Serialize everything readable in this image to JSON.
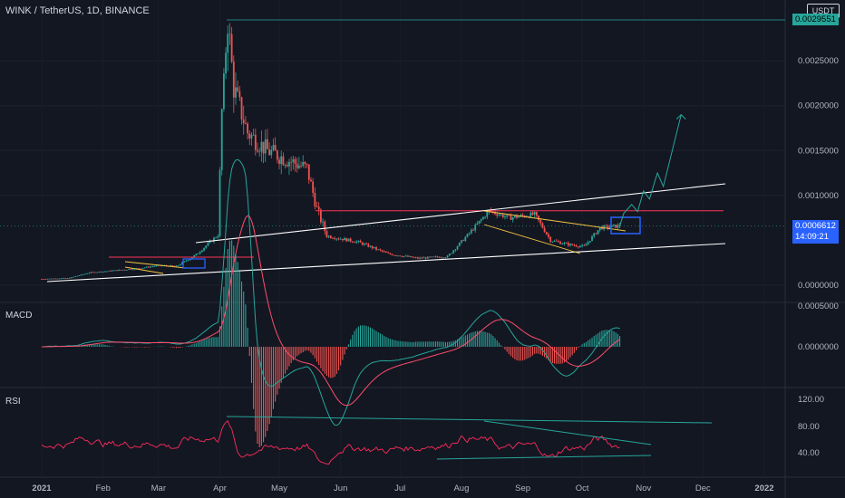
{
  "header": {
    "title": "WINK / TetherUS, 1D, BINANCE",
    "currency": "USDT"
  },
  "tags": {
    "high": "0.0029551",
    "last_price": "0.0006612",
    "countdown": "14:09:21"
  },
  "panes": {
    "macd": "MACD",
    "rsi": "RSI"
  },
  "colors": {
    "background": "#131722",
    "up": "#26a69a",
    "down": "#ef5350",
    "trendline": "#ffffff",
    "resistance": "#ff3355",
    "projection": "#26a69a",
    "rsi": "#ff2a5a",
    "rsi_trend": "#26a69a",
    "macd_signal": "#ff4d6a",
    "macd_line": "#26a69a",
    "box": "#2962ff",
    "wedge": "#f5c542"
  },
  "chart_data": [
    {
      "type": "candlestick",
      "x_ticks": [
        "2021",
        "Feb",
        "Mar",
        "Apr",
        "May",
        "Jun",
        "Jul",
        "Aug",
        "Sep",
        "Oct",
        "Nov",
        "Dec",
        "2022"
      ],
      "y_ticks": [
        "0.0025000",
        "0.0020000",
        "0.0015000",
        "0.0010000",
        "0.0000000"
      ],
      "ylim": [
        0,
        0.003
      ],
      "close_path": [
        [
          "2021-01-01",
          7e-05
        ],
        [
          "2021-01-15",
          8e-05
        ],
        [
          "2021-01-25",
          0.00014
        ],
        [
          "2021-02-05",
          0.00016
        ],
        [
          "2021-02-20",
          0.00019
        ],
        [
          "2021-03-01",
          0.00022
        ],
        [
          "2021-03-10",
          0.00021
        ],
        [
          "2021-03-20",
          0.00034
        ],
        [
          "2021-03-31",
          0.00056
        ],
        [
          "2021-04-02",
          0.00195
        ],
        [
          "2021-04-05",
          0.0029551
        ],
        [
          "2021-04-08",
          0.0022
        ],
        [
          "2021-04-15",
          0.0017
        ],
        [
          "2021-04-25",
          0.0015
        ],
        [
          "2021-05-05",
          0.0014
        ],
        [
          "2021-05-15",
          0.0013
        ],
        [
          "2021-05-20",
          0.00085
        ],
        [
          "2021-05-25",
          0.00055
        ],
        [
          "2021-06-10",
          0.00048
        ],
        [
          "2021-06-25",
          0.00035
        ],
        [
          "2021-07-10",
          0.0003
        ],
        [
          "2021-07-25",
          0.00032
        ],
        [
          "2021-08-05",
          0.00058
        ],
        [
          "2021-08-15",
          0.00083
        ],
        [
          "2021-08-25",
          0.00075
        ],
        [
          "2021-09-07",
          0.00079
        ],
        [
          "2021-09-15",
          0.0005
        ],
        [
          "2021-09-25",
          0.00045
        ],
        [
          "2021-10-02",
          0.00043
        ],
        [
          "2021-10-10",
          0.00064
        ],
        [
          "2021-10-20",
          0.0006612
        ]
      ],
      "annotations": {
        "resistance_level": 0.00083,
        "high": 0.0029551,
        "last_price": 0.0006612,
        "projection": [
          [
            "2021-10-22",
            0.0008
          ],
          [
            "2021-10-26",
            0.0009
          ],
          [
            "2021-10-29",
            0.00082
          ],
          [
            "2021-11-01",
            0.00105
          ],
          [
            "2021-11-04",
            0.00096
          ],
          [
            "2021-11-08",
            0.00125
          ],
          [
            "2021-11-11",
            0.0011
          ],
          [
            "2021-11-20",
            0.0019
          ]
        ]
      }
    },
    {
      "type": "macd",
      "y_ticks": [
        "0.0005000",
        "0.0000000"
      ],
      "ylim": [
        -0.00025,
        0.0005
      ]
    },
    {
      "type": "rsi",
      "y_ticks": [
        "120.00",
        "80.00",
        "40.00"
      ],
      "ylim": [
        10,
        130
      ]
    }
  ]
}
